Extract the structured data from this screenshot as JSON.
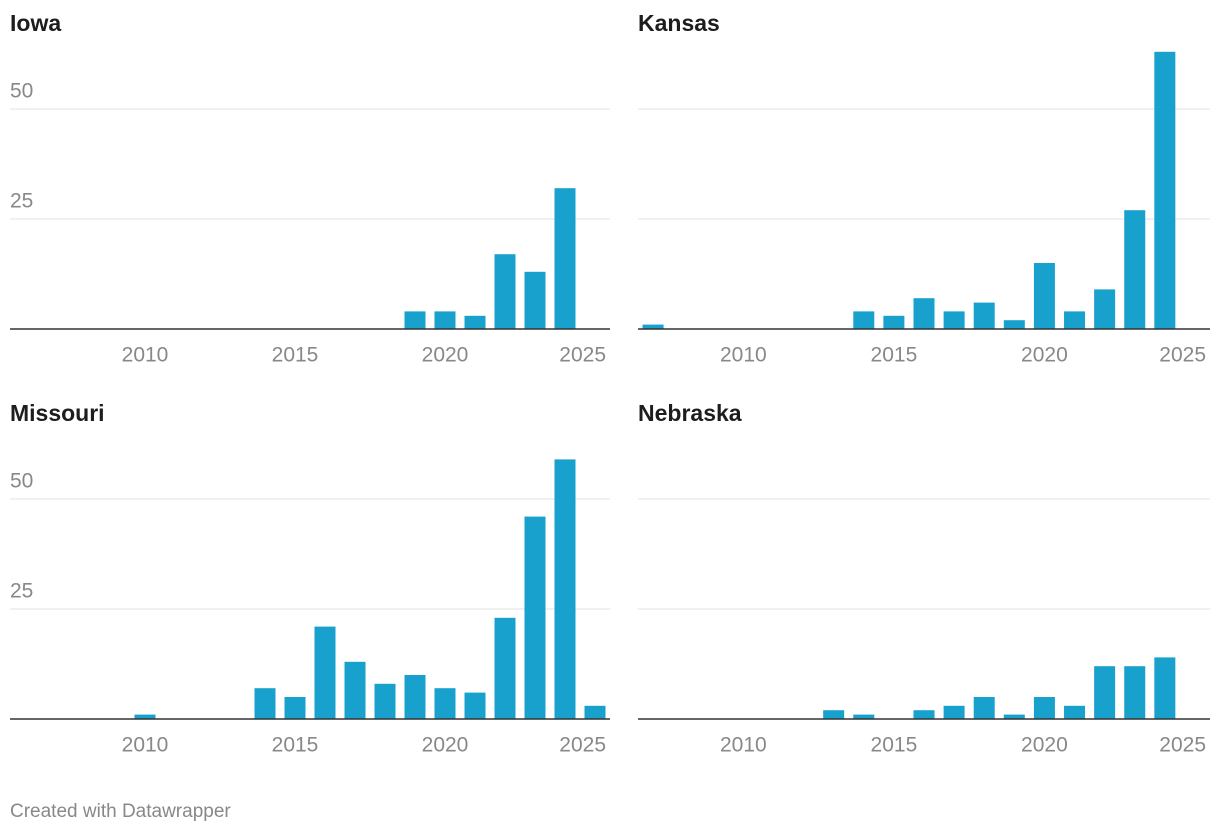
{
  "chart_data": [
    {
      "type": "bar",
      "title": "Iowa",
      "x": [
        2019,
        2020,
        2021,
        2022,
        2023,
        2024
      ],
      "values": [
        4,
        4,
        3,
        17,
        13,
        32
      ],
      "color": "#18a1cd",
      "xlim": [
        2005.5,
        2025.5
      ],
      "ylim": [
        0,
        63
      ],
      "xticks": [
        2010,
        2015,
        2020,
        2025
      ],
      "yticks": [
        25,
        50
      ],
      "ytick_labels": true,
      "grid": true
    },
    {
      "type": "bar",
      "title": "Kansas",
      "x": [
        2007,
        2014,
        2015,
        2016,
        2017,
        2018,
        2019,
        2020,
        2021,
        2022,
        2023,
        2024
      ],
      "values": [
        1,
        4,
        3,
        7,
        4,
        6,
        2,
        15,
        4,
        9,
        27,
        63
      ],
      "color": "#18a1cd",
      "xlim": [
        2006.5,
        2025.5
      ],
      "ylim": [
        0,
        63
      ],
      "xticks": [
        2010,
        2015,
        2020,
        2025
      ],
      "yticks": [
        25,
        50
      ],
      "ytick_labels": false,
      "grid": true
    },
    {
      "type": "bar",
      "title": "Missouri",
      "x": [
        2010,
        2014,
        2015,
        2016,
        2017,
        2018,
        2019,
        2020,
        2021,
        2022,
        2023,
        2024,
        2025
      ],
      "values": [
        1,
        7,
        5,
        21,
        13,
        8,
        10,
        7,
        6,
        23,
        46,
        59,
        3
      ],
      "color": "#18a1cd",
      "xlim": [
        2005.5,
        2025.5
      ],
      "ylim": [
        0,
        63
      ],
      "xticks": [
        2010,
        2015,
        2020,
        2025
      ],
      "yticks": [
        25,
        50
      ],
      "ytick_labels": true,
      "grid": true
    },
    {
      "type": "bar",
      "title": "Nebraska",
      "x": [
        2013,
        2014,
        2016,
        2017,
        2018,
        2019,
        2020,
        2021,
        2022,
        2023,
        2024
      ],
      "values": [
        2,
        1,
        2,
        3,
        5,
        1,
        5,
        3,
        12,
        12,
        14
      ],
      "color": "#18a1cd",
      "xlim": [
        2006.5,
        2025.5
      ],
      "ylim": [
        0,
        63
      ],
      "xticks": [
        2010,
        2015,
        2020,
        2025
      ],
      "yticks": [
        25,
        50
      ],
      "ytick_labels": false,
      "grid": true
    }
  ],
  "footer": "Created with Datawrapper"
}
